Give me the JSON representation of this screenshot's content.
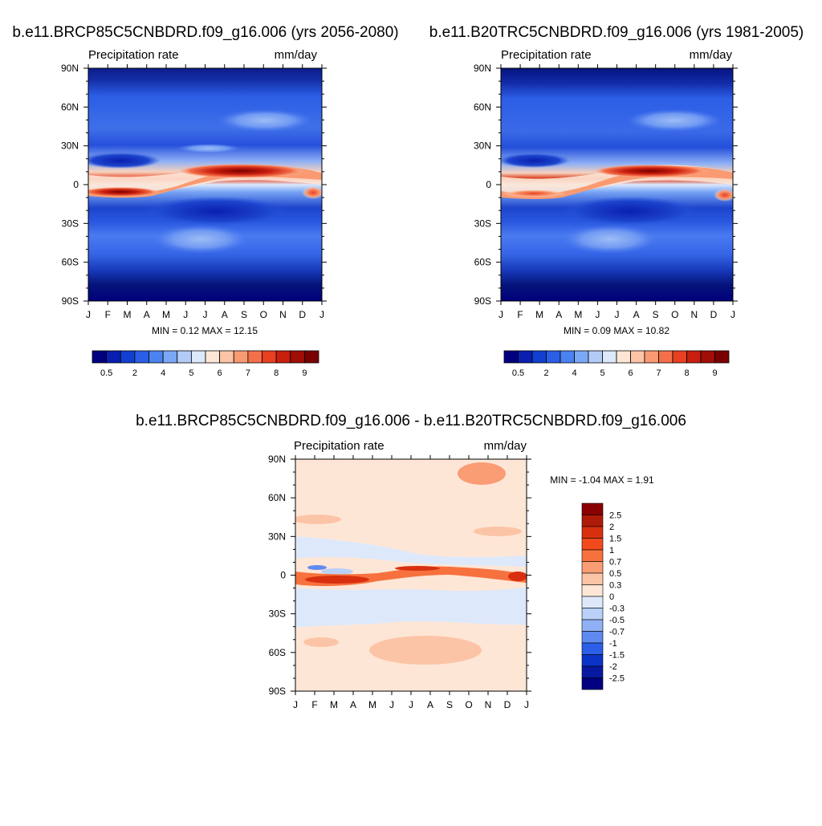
{
  "chart_data": [
    {
      "type": "heatmap",
      "title": "b.e11.BRCP85C5CNBDRD.f09_g16.006 (yrs 2056-2080)",
      "left_label": "Precipitation rate",
      "right_label": "mm/day",
      "x_tick_labels": [
        "J",
        "F",
        "M",
        "A",
        "M",
        "J",
        "J",
        "A",
        "S",
        "O",
        "N",
        "D",
        "J"
      ],
      "y_tick_labels": [
        "90N",
        "60N",
        "30N",
        "0",
        "30S",
        "60S",
        "90S"
      ],
      "ylim": [
        -90,
        90
      ],
      "stats_text": "MIN =   0.12 MAX =  12.15",
      "min": 0.12,
      "max": 12.15,
      "legend": {
        "orientation": "horizontal",
        "labels": [
          "0.5",
          "2",
          "4",
          "5",
          "6",
          "7",
          "8",
          "9"
        ],
        "colors": [
          "#00007f",
          "#0a1fb0",
          "#1140d0",
          "#2b5ee6",
          "#4a82f0",
          "#7ba7f5",
          "#b3ccf7",
          "#dce8fb",
          "#fde6d6",
          "#fcc4a6",
          "#f99a72",
          "#f4704a",
          "#e84020",
          "#c81e0e",
          "#a00e06",
          "#7a0000"
        ]
      }
    },
    {
      "type": "heatmap",
      "title": "b.e11.B20TRC5CNBDRD.f09_g16.006 (yrs 1981-2005)",
      "left_label": "Precipitation rate",
      "right_label": "mm/day",
      "x_tick_labels": [
        "J",
        "F",
        "M",
        "A",
        "M",
        "J",
        "J",
        "A",
        "S",
        "O",
        "N",
        "D",
        "J"
      ],
      "y_tick_labels": [
        "90N",
        "60N",
        "30N",
        "0",
        "30S",
        "60S",
        "90S"
      ],
      "ylim": [
        -90,
        90
      ],
      "stats_text": "MIN =   0.09 MAX =  10.82",
      "min": 0.09,
      "max": 10.82,
      "legend": {
        "orientation": "horizontal",
        "labels": [
          "0.5",
          "2",
          "4",
          "5",
          "6",
          "7",
          "8",
          "9"
        ],
        "colors": [
          "#00007f",
          "#0a1fb0",
          "#1140d0",
          "#2b5ee6",
          "#4a82f0",
          "#7ba7f5",
          "#b3ccf7",
          "#dce8fb",
          "#fde6d6",
          "#fcc4a6",
          "#f99a72",
          "#f4704a",
          "#e84020",
          "#c81e0e",
          "#a00e06",
          "#7a0000"
        ]
      }
    },
    {
      "type": "heatmap",
      "title": "b.e11.BRCP85C5CNBDRD.f09_g16.006 - b.e11.B20TRC5CNBDRD.f09_g16.006",
      "left_label": "Precipitation rate",
      "right_label": "mm/day",
      "x_tick_labels": [
        "J",
        "F",
        "M",
        "A",
        "M",
        "J",
        "J",
        "A",
        "S",
        "O",
        "N",
        "D",
        "J"
      ],
      "y_tick_labels": [
        "90N",
        "60N",
        "30N",
        "0",
        "30S",
        "60S",
        "90S"
      ],
      "ylim": [
        -90,
        90
      ],
      "stats_text": "MIN =  -1.04 MAX =   1.91",
      "min": -1.04,
      "max": 1.91,
      "legend": {
        "orientation": "vertical",
        "labels": [
          "2.5",
          "2",
          "1.5",
          "1",
          "0.7",
          "0.5",
          "0.3",
          "0",
          "-0.3",
          "-0.5",
          "-0.7",
          "-1",
          "-1.5",
          "-2",
          "-2.5"
        ],
        "colors": [
          "#8b0000",
          "#b01a08",
          "#d8300e",
          "#f24a1c",
          "#f7713e",
          "#fa9c74",
          "#fcc4a6",
          "#fee6d6",
          "#dde9fb",
          "#b9d0f8",
          "#8fb0f4",
          "#5f8af0",
          "#2c5fe8",
          "#0c33c8",
          "#0619a0",
          "#000080"
        ]
      }
    }
  ]
}
